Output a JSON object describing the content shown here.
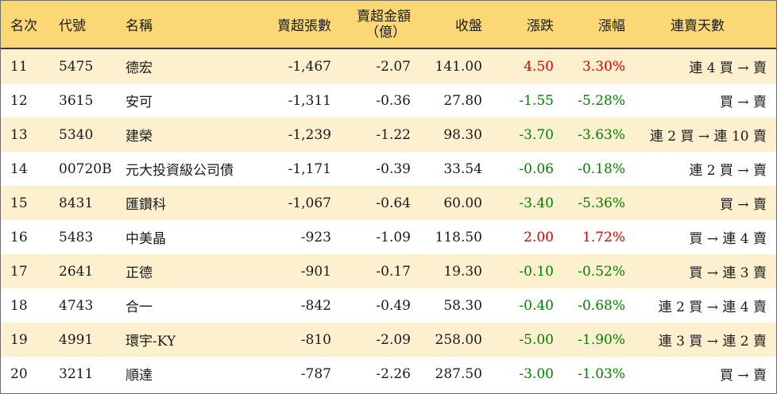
{
  "table": {
    "headers": {
      "rank": "名次",
      "code": "代號",
      "name": "名稱",
      "net_sell_volume": "賣超張數",
      "net_sell_amount_line1": "賣超金額",
      "net_sell_amount_line2": "（億）",
      "close": "收盤",
      "change": "漲跌",
      "change_pct": "漲幅",
      "streak": "連賣天數"
    },
    "rows": [
      {
        "rank": "11",
        "code": "5475",
        "name": "德宏",
        "volume": "-1,467",
        "amount": "-2.07",
        "close": "141.00",
        "change": "4.50",
        "pct": "3.30%",
        "streak": "連 4 買 → 賣",
        "dir": "up"
      },
      {
        "rank": "12",
        "code": "3615",
        "name": "安可",
        "volume": "-1,311",
        "amount": "-0.36",
        "close": "27.80",
        "change": "-1.55",
        "pct": "-5.28%",
        "streak": "買 → 賣",
        "dir": "down"
      },
      {
        "rank": "13",
        "code": "5340",
        "name": "建榮",
        "volume": "-1,239",
        "amount": "-1.22",
        "close": "98.30",
        "change": "-3.70",
        "pct": "-3.63%",
        "streak": "連 2 買 → 連 10 賣",
        "dir": "down"
      },
      {
        "rank": "14",
        "code": "00720B",
        "name": "元大投資級公司債",
        "volume": "-1,171",
        "amount": "-0.39",
        "close": "33.54",
        "change": "-0.06",
        "pct": "-0.18%",
        "streak": "連 2 買 → 賣",
        "dir": "down"
      },
      {
        "rank": "15",
        "code": "8431",
        "name": "匯鑽科",
        "volume": "-1,067",
        "amount": "-0.64",
        "close": "60.00",
        "change": "-3.40",
        "pct": "-5.36%",
        "streak": "買 → 賣",
        "dir": "down"
      },
      {
        "rank": "16",
        "code": "5483",
        "name": "中美晶",
        "volume": "-923",
        "amount": "-1.09",
        "close": "118.50",
        "change": "2.00",
        "pct": "1.72%",
        "streak": "買 → 連 4 賣",
        "dir": "up"
      },
      {
        "rank": "17",
        "code": "2641",
        "name": "正德",
        "volume": "-901",
        "amount": "-0.17",
        "close": "19.30",
        "change": "-0.10",
        "pct": "-0.52%",
        "streak": "買 → 連 3 賣",
        "dir": "down"
      },
      {
        "rank": "18",
        "code": "4743",
        "name": "合一",
        "volume": "-842",
        "amount": "-0.49",
        "close": "58.30",
        "change": "-0.40",
        "pct": "-0.68%",
        "streak": "連 2 買 → 連 4 賣",
        "dir": "down"
      },
      {
        "rank": "19",
        "code": "4991",
        "name": "環宇-KY",
        "volume": "-810",
        "amount": "-2.09",
        "close": "258.00",
        "change": "-5.00",
        "pct": "-1.90%",
        "streak": "連 3 買 → 連 2 賣",
        "dir": "down"
      },
      {
        "rank": "20",
        "code": "3211",
        "name": "順達",
        "volume": "-787",
        "amount": "-2.26",
        "close": "287.50",
        "change": "-3.00",
        "pct": "-1.03%",
        "streak": "買 → 賣",
        "dir": "down"
      }
    ]
  },
  "colors": {
    "header_bg": "#fbd776",
    "row_alt_bg": "#fdf0cf",
    "up": "#e00000",
    "down": "#008000"
  }
}
